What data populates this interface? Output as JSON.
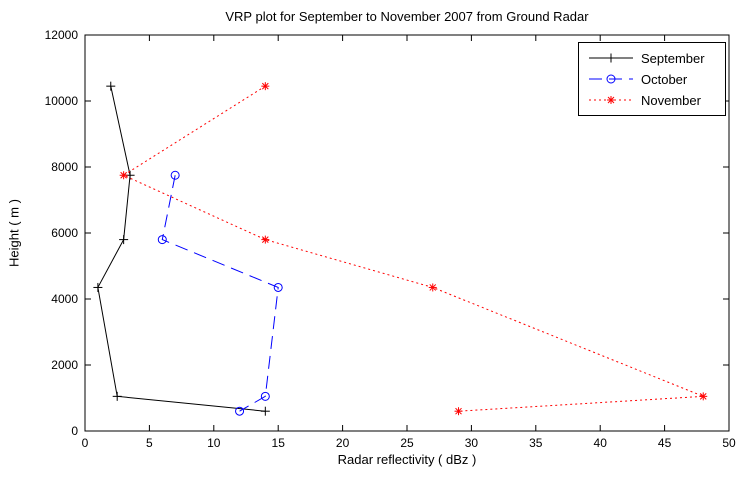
{
  "chart_data": {
    "type": "line",
    "title": "VRP plot for September to November 2007 from Ground Radar",
    "xlabel": "Radar reflectivity ( dBz )",
    "ylabel": "Height ( m )",
    "xlim": [
      0,
      50
    ],
    "ylim": [
      0,
      12000
    ],
    "xticks": [
      0,
      5,
      10,
      15,
      20,
      25,
      30,
      35,
      40,
      45,
      50
    ],
    "yticks": [
      0,
      2000,
      4000,
      6000,
      8000,
      10000,
      12000
    ],
    "grid": false,
    "legend_position": "top-right",
    "axis_color": "#000000",
    "series": [
      {
        "name": "September",
        "color": "#000000",
        "line": "solid",
        "marker": "plus",
        "points": [
          [
            2,
            10450
          ],
          [
            3.5,
            7750
          ],
          [
            3,
            5800
          ],
          [
            1,
            4350
          ],
          [
            2.5,
            1050
          ],
          [
            14,
            600
          ]
        ]
      },
      {
        "name": "October",
        "color": "#0000ff",
        "line": "dashed",
        "marker": "circle",
        "points": [
          [
            7,
            7750
          ],
          [
            6,
            5800
          ],
          [
            15,
            4350
          ],
          [
            14,
            1050
          ],
          [
            12,
            600
          ]
        ]
      },
      {
        "name": "November",
        "color": "#ff0000",
        "line": "dotted",
        "marker": "asterisk",
        "points": [
          [
            14,
            10450
          ],
          [
            3,
            7750
          ],
          [
            14,
            5800
          ],
          [
            27,
            4350
          ],
          [
            48,
            1050
          ],
          [
            29,
            600
          ]
        ]
      }
    ]
  }
}
